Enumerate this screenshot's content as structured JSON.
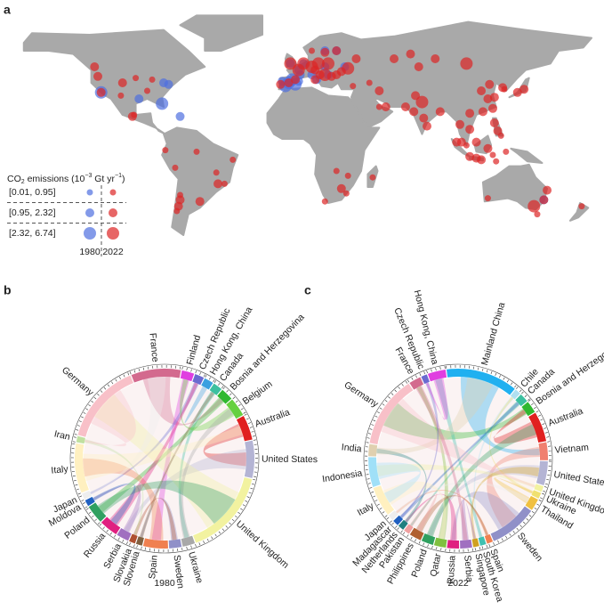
{
  "panel_a": {
    "label": "a",
    "legend": {
      "title": [
        "CO",
        "2",
        " emissions (10",
        "−3",
        " Gt yr",
        "−1",
        ")"
      ],
      "bins": [
        "[0.01, 0.95]",
        "[0.95, 2.32]",
        "[2.32, 6.74]"
      ],
      "years": [
        "1980",
        "2022"
      ],
      "colors": [
        "#4f6fe0",
        "#dd2525"
      ]
    },
    "dots_1980": [
      [
        -118,
        34,
        2
      ],
      [
        -80,
        40,
        1
      ],
      [
        -77,
        39,
        1
      ],
      [
        -95,
        30,
        1
      ],
      [
        -81,
        27,
        2
      ],
      [
        -70,
        19,
        1
      ],
      [
        -4,
        40,
        2
      ],
      [
        -6,
        38,
        2
      ],
      [
        -2,
        42,
        2
      ],
      [
        0,
        39,
        2
      ],
      [
        2,
        41,
        1
      ],
      [
        -8,
        41,
        1
      ],
      [
        3,
        45,
        1
      ],
      [
        10,
        45,
        1
      ],
      [
        13,
        42,
        1
      ],
      [
        18,
        50,
        1
      ],
      [
        20,
        45,
        1
      ],
      [
        25,
        60,
        1
      ],
      [
        -3,
        52,
        1
      ],
      [
        30,
        50,
        1
      ],
      [
        2,
        48,
        1
      ],
      [
        5,
        52,
        1
      ],
      [
        151,
        -33,
        1
      ],
      [
        18,
        60,
        1
      ]
    ],
    "dots_2022": [
      [
        -118,
        34,
        1
      ],
      [
        -120,
        44,
        1
      ],
      [
        -105,
        40,
        1
      ],
      [
        -97,
        43,
        0
      ],
      [
        -90,
        35,
        0
      ],
      [
        -87,
        42,
        0
      ],
      [
        -106,
        32,
        0
      ],
      [
        -122,
        50,
        1
      ],
      [
        -98,
        20,
        0
      ],
      [
        -99,
        19,
        1
      ],
      [
        -79,
        -2,
        0
      ],
      [
        -70,
        -33,
        1
      ],
      [
        -70,
        -30,
        0
      ],
      [
        -71,
        -37,
        1
      ],
      [
        -72,
        -40,
        0
      ],
      [
        -58,
        -34,
        1
      ],
      [
        -47,
        -23,
        1
      ],
      [
        -43,
        -23,
        0
      ],
      [
        -48,
        -16,
        0
      ],
      [
        -38,
        -8,
        0
      ],
      [
        -60,
        -3,
        0
      ],
      [
        -73,
        -13,
        0
      ],
      [
        28,
        -26,
        1
      ],
      [
        31,
        -29,
        0
      ],
      [
        18,
        -34,
        0
      ],
      [
        32,
        -18,
        0
      ],
      [
        25,
        -15,
        0
      ],
      [
        47,
        -19,
        0
      ],
      [
        -3,
        52,
        2
      ],
      [
        2,
        48,
        2
      ],
      [
        5,
        52,
        2
      ],
      [
        10,
        50,
        2
      ],
      [
        14,
        52,
        2
      ],
      [
        20,
        52,
        2
      ],
      [
        12,
        48,
        1
      ],
      [
        15,
        45,
        1
      ],
      [
        18,
        45,
        2
      ],
      [
        22,
        44,
        1
      ],
      [
        25,
        45,
        1
      ],
      [
        28,
        47,
        1
      ],
      [
        32,
        49,
        2
      ],
      [
        37,
        55,
        1
      ],
      [
        25,
        60,
        1
      ],
      [
        10,
        60,
        0
      ],
      [
        18,
        59,
        1
      ],
      [
        0,
        42,
        1
      ],
      [
        -4,
        40,
        1
      ],
      [
        12,
        42,
        1
      ],
      [
        -9,
        39,
        1
      ],
      [
        35,
        38,
        0
      ],
      [
        45,
        40,
        0
      ],
      [
        51,
        35,
        1
      ],
      [
        60,
        55,
        1
      ],
      [
        70,
        58,
        1
      ],
      [
        75,
        50,
        1
      ],
      [
        85,
        55,
        1
      ],
      [
        104,
        52,
        2
      ],
      [
        55,
        25,
        1
      ],
      [
        51,
        25,
        0
      ],
      [
        67,
        25,
        1
      ],
      [
        73,
        32,
        1
      ],
      [
        77,
        28,
        2
      ],
      [
        72,
        22,
        1
      ],
      [
        80,
        13,
        1
      ],
      [
        88,
        22,
        1
      ],
      [
        78,
        18,
        1
      ],
      [
        100,
        14,
        1
      ],
      [
        101,
        3,
        1
      ],
      [
        104,
        1,
        0
      ],
      [
        106,
        11,
        1
      ],
      [
        106,
        21,
        1
      ],
      [
        110,
        3,
        1
      ],
      [
        114,
        22,
        1
      ],
      [
        117,
        30,
        1
      ],
      [
        113,
        35,
        1
      ],
      [
        121,
        31,
        1
      ],
      [
        118,
        39,
        1
      ],
      [
        120,
        24,
        1
      ],
      [
        126,
        37,
        1
      ],
      [
        127,
        36,
        0
      ],
      [
        121,
        15,
        1
      ],
      [
        123,
        10,
        1
      ],
      [
        125,
        7,
        0
      ],
      [
        139,
        36,
        1
      ],
      [
        135,
        34,
        1
      ],
      [
        106,
        -6,
        1
      ],
      [
        110,
        -7,
        1
      ],
      [
        113,
        -8,
        1
      ],
      [
        117,
        -1,
        1
      ],
      [
        120,
        -5,
        0
      ],
      [
        98,
        3,
        1
      ],
      [
        122,
        -9,
        0
      ],
      [
        128,
        -3,
        0
      ],
      [
        145,
        -37,
        2
      ],
      [
        151,
        -33,
        1
      ],
      [
        153,
        -27,
        1
      ],
      [
        147,
        -42,
        0
      ],
      [
        117,
        -32,
        0
      ],
      [
        174,
        -37,
        0
      ]
    ]
  },
  "panel_b": {
    "label": "b",
    "year": "1980",
    "segments": [
      {
        "label": "France",
        "color": "#d36a8e",
        "share": 8
      },
      {
        "label": "Finland",
        "color": "#e03ee0",
        "share": 2
      },
      {
        "label": "Czech Republic",
        "color": "#6a6ad0",
        "share": 1.5
      },
      {
        "label": "Hong Kong, China",
        "color": "#3aa0e0",
        "share": 1.5
      },
      {
        "label": "Canada",
        "color": "#3cc0a0",
        "share": 1.5
      },
      {
        "label": "Bosnia and Herzegovina",
        "color": "#30b830",
        "share": 2
      },
      {
        "label": "Belgium",
        "color": "#66d040",
        "share": 3
      },
      {
        "label": "Australia",
        "color": "#e02020",
        "share": 4
      },
      {
        "label": "United States",
        "color": "#b4b4d4",
        "share": 6
      },
      {
        "label": "United Kingdom",
        "color": "#f2f2a0",
        "share": 14
      },
      {
        "label": "Ukraine",
        "color": "#a8a8a8",
        "share": 2
      },
      {
        "label": "Sweden",
        "color": "#9090c8",
        "share": 2
      },
      {
        "label": "Spain",
        "color": "#f08050",
        "share": 4
      },
      {
        "label": "Slovenia",
        "color": "#806040",
        "share": 1
      },
      {
        "label": "Slovakia",
        "color": "#b05030",
        "share": 1
      },
      {
        "label": "Serbia",
        "color": "#a070c0",
        "share": 2
      },
      {
        "label": "Russia",
        "color": "#e02080",
        "share": 3
      },
      {
        "label": "Poland",
        "color": "#30a060",
        "share": 3
      },
      {
        "label": "Moldova",
        "color": "#2060c0",
        "share": 1
      },
      {
        "label": "Japan",
        "color": "#eeeeee",
        "share": 1
      },
      {
        "label": "Italy",
        "color": "#fff0c0",
        "share": 8
      },
      {
        "label": "Iran",
        "color": "#c0e0a0",
        "share": 1
      },
      {
        "label": "Germany",
        "color": "#f8c0c8",
        "share": 13
      }
    ]
  },
  "panel_c": {
    "label": "c",
    "year": "2022",
    "segments": [
      {
        "label": "Mainland China",
        "color": "#20b0f0",
        "share": 12
      },
      {
        "label": "Chile",
        "color": "#b0e0f0",
        "share": 1
      },
      {
        "label": "Canada",
        "color": "#3cc0a0",
        "share": 1.5
      },
      {
        "label": "Bosnia and Herzegovina",
        "color": "#30b830",
        "share": 2
      },
      {
        "label": "Australia",
        "color": "#e02020",
        "share": 5
      },
      {
        "label": "Vietnam",
        "color": "#f08070",
        "share": 3
      },
      {
        "label": "United States",
        "color": "#b4b4d4",
        "share": 4
      },
      {
        "label": "United Kingdom",
        "color": "#f2f2a0",
        "share": 1
      },
      {
        "label": "Ukraine",
        "color": "#f0e070",
        "share": 1
      },
      {
        "label": "Thailand",
        "color": "#f0c040",
        "share": 2
      },
      {
        "label": "Sweden",
        "color": "#9090c8",
        "share": 8
      },
      {
        "label": "Spain",
        "color": "#f08050",
        "share": 1
      },
      {
        "label": "South Korea",
        "color": "#40c0b0",
        "share": 1
      },
      {
        "label": "Singapore",
        "color": "#d0a020",
        "share": 1
      },
      {
        "label": "Serbia",
        "color": "#a070c0",
        "share": 2
      },
      {
        "label": "Russia",
        "color": "#e02080",
        "share": 2
      },
      {
        "label": "Qatar",
        "color": "#80c040",
        "share": 2
      },
      {
        "label": "Poland",
        "color": "#30a060",
        "share": 2
      },
      {
        "label": "Philippines",
        "color": "#b06030",
        "share": 2
      },
      {
        "label": "Pakistan",
        "color": "#f0a0a0",
        "share": 1
      },
      {
        "label": "Netherlands",
        "color": "#208080",
        "share": 1
      },
      {
        "label": "Madagascar",
        "color": "#2060c0",
        "share": 1
      },
      {
        "label": "Japan",
        "color": "#eeeeee",
        "share": 1
      },
      {
        "label": "Italy",
        "color": "#fff0c0",
        "share": 5
      },
      {
        "label": "Indonesia",
        "color": "#a0e0f8",
        "share": 5
      },
      {
        "label": "India",
        "color": "#e0d0b0",
        "share": 2
      },
      {
        "label": "Germany",
        "color": "#f8c0c8",
        "share": 12
      },
      {
        "label": "France",
        "color": "#d36a8e",
        "share": 2
      },
      {
        "label": "Czech Republic",
        "color": "#6a6ad0",
        "share": 1
      },
      {
        "label": "Hong Kong, China",
        "color": "#e03ee0",
        "share": 3
      }
    ]
  }
}
